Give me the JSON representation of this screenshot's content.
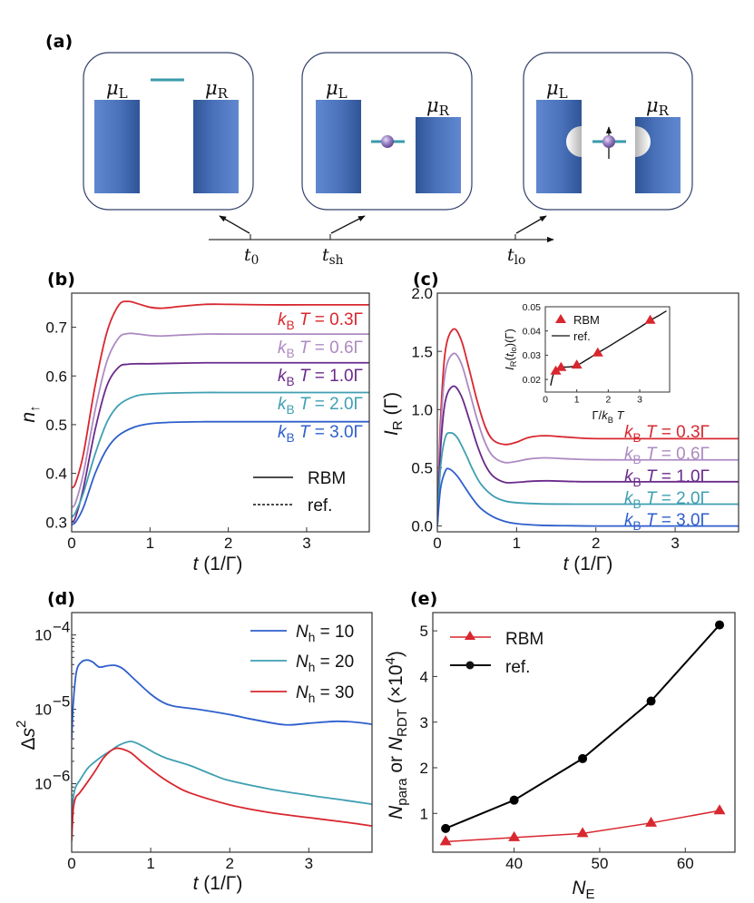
{
  "figure": {
    "panels": [
      "(a)",
      "(b)",
      "(c)",
      "(d)",
      "(e)"
    ],
    "schematic": {
      "boxes": [
        {
          "left_label": "μ",
          "left_sub": "L",
          "right_label": "μ",
          "right_sub": "R",
          "state": "empty level above leads"
        },
        {
          "left_label": "μ",
          "left_sub": "L",
          "right_label": "μ",
          "right_sub": "R",
          "state": "level occupied, bias shifted"
        },
        {
          "left_label": "μ",
          "left_sub": "L",
          "right_label": "μ",
          "right_sub": "R",
          "state": "spin-up occupied with lead holes"
        }
      ],
      "timeline": [
        {
          "label": "t",
          "sub": "0"
        },
        {
          "label": "t",
          "sub": "sh"
        },
        {
          "label": "t",
          "sub": "lo"
        }
      ],
      "colors": {
        "lead_dark": "#2f5596",
        "lead_light": "#6088cf",
        "level": "#3a9aab",
        "electron": "#9a7fc4",
        "box_border": "#33406a",
        "hole": "#d4d4d4"
      }
    }
  },
  "chart_data": [
    {
      "panel": "(b)",
      "type": "line",
      "title": "",
      "xlabel": "t (1/Γ)",
      "ylabel": "n↑",
      "xlim": [
        0,
        3.8
      ],
      "ylim": [
        0.28,
        0.77
      ],
      "xticks": [
        0,
        1,
        2,
        3
      ],
      "yticks": [
        0.3,
        0.4,
        0.5,
        0.6,
        0.7
      ],
      "ytick_labels": [
        "0.3",
        "0.4",
        "0.5",
        "0.6",
        "0.7"
      ],
      "legend": {
        "placement": "lower-right",
        "entries": [
          {
            "label": "RBM",
            "style": "solid"
          },
          {
            "label": "ref.",
            "style": "dashed"
          }
        ]
      },
      "series": [
        {
          "name": "kBT = 0.3Γ",
          "color": "#d8272f",
          "x": [
            0,
            0.05,
            0.15,
            0.3,
            0.45,
            0.6,
            0.72,
            0.85,
            1.0,
            1.15,
            1.4,
            1.7,
            2.0,
            2.5,
            3.0,
            3.8
          ],
          "y": [
            0.37,
            0.38,
            0.44,
            0.58,
            0.69,
            0.745,
            0.753,
            0.748,
            0.741,
            0.739,
            0.743,
            0.747,
            0.747,
            0.746,
            0.746,
            0.746
          ]
        },
        {
          "name": "kBT = 0.6Γ",
          "color": "#ad8ac2",
          "x": [
            0,
            0.05,
            0.15,
            0.3,
            0.45,
            0.6,
            0.72,
            0.85,
            1.0,
            1.15,
            1.4,
            1.7,
            2.0,
            2.5,
            3.0,
            3.8
          ],
          "y": [
            0.33,
            0.34,
            0.4,
            0.53,
            0.63,
            0.678,
            0.687,
            0.686,
            0.683,
            0.682,
            0.684,
            0.686,
            0.686,
            0.686,
            0.686,
            0.686
          ]
        },
        {
          "name": "kBT = 1.0Γ",
          "color": "#6a2a8a",
          "x": [
            0,
            0.05,
            0.15,
            0.3,
            0.45,
            0.6,
            0.72,
            0.85,
            1.0,
            1.3,
            1.7,
            2.0,
            2.5,
            3.0,
            3.8
          ],
          "y": [
            0.3,
            0.31,
            0.37,
            0.49,
            0.58,
            0.618,
            0.624,
            0.625,
            0.625,
            0.626,
            0.627,
            0.627,
            0.627,
            0.627,
            0.627
          ]
        },
        {
          "name": "kBT = 2.0Γ",
          "color": "#3f9fb2",
          "x": [
            0,
            0.05,
            0.15,
            0.3,
            0.45,
            0.6,
            0.8,
            1.0,
            1.3,
            1.7,
            2.0,
            2.5,
            3.0,
            3.8
          ],
          "y": [
            0.31,
            0.32,
            0.36,
            0.44,
            0.505,
            0.54,
            0.558,
            0.563,
            0.565,
            0.566,
            0.566,
            0.566,
            0.566,
            0.566
          ]
        },
        {
          "name": "kBT = 3.0Γ",
          "color": "#2e5fcc",
          "x": [
            0,
            0.05,
            0.15,
            0.3,
            0.45,
            0.6,
            0.8,
            1.0,
            1.3,
            1.7,
            2.0,
            2.5,
            3.0,
            3.8
          ],
          "y": [
            0.295,
            0.3,
            0.33,
            0.4,
            0.45,
            0.478,
            0.495,
            0.502,
            0.505,
            0.506,
            0.506,
            0.506,
            0.506,
            0.506
          ]
        }
      ],
      "annotations": [
        "kBT = 0.3Γ",
        "kBT = 0.6Γ",
        "kBT = 1.0Γ",
        "kBT = 2.0Γ",
        "kBT = 3.0Γ"
      ]
    },
    {
      "panel": "(c)",
      "type": "line",
      "title": "",
      "xlabel": "t (1/Γ)",
      "ylabel": "IR (Γ)",
      "xlim": [
        0,
        3.8
      ],
      "ylim": [
        -0.05,
        2.0
      ],
      "xticks": [
        0,
        1,
        2,
        3
      ],
      "yticks": [
        0.0,
        0.5,
        1.0,
        1.5,
        2.0
      ],
      "ytick_labels": [
        "0.0",
        "0.5",
        "1.0",
        "1.5",
        "2.0"
      ],
      "series": [
        {
          "name": "kBT = 0.3Γ",
          "color": "#d8272f",
          "x": [
            0,
            0.04,
            0.1,
            0.2,
            0.3,
            0.4,
            0.5,
            0.6,
            0.7,
            0.85,
            1.0,
            1.15,
            1.35,
            1.6,
            1.9,
            2.3,
            3.0,
            3.8
          ],
          "y": [
            0.0,
            0.9,
            1.5,
            1.69,
            1.6,
            1.35,
            1.08,
            0.86,
            0.74,
            0.7,
            0.72,
            0.76,
            0.775,
            0.765,
            0.752,
            0.75,
            0.75,
            0.75
          ]
        },
        {
          "name": "kBT = 0.6Γ",
          "color": "#ad8ac2",
          "x": [
            0,
            0.04,
            0.1,
            0.2,
            0.3,
            0.4,
            0.5,
            0.6,
            0.7,
            0.85,
            1.0,
            1.15,
            1.35,
            1.6,
            1.9,
            2.3,
            3.0,
            3.8
          ],
          "y": [
            0.0,
            0.8,
            1.32,
            1.48,
            1.4,
            1.17,
            0.92,
            0.72,
            0.6,
            0.545,
            0.555,
            0.575,
            0.585,
            0.578,
            0.57,
            0.568,
            0.568,
            0.568
          ]
        },
        {
          "name": "kBT = 1.0Γ",
          "color": "#6a2a8a",
          "x": [
            0,
            0.04,
            0.1,
            0.2,
            0.3,
            0.4,
            0.5,
            0.6,
            0.7,
            0.85,
            1.0,
            1.2,
            1.4,
            1.7,
            2.0,
            3.0,
            3.8
          ],
          "y": [
            0.0,
            0.65,
            1.07,
            1.2,
            1.12,
            0.92,
            0.7,
            0.53,
            0.43,
            0.375,
            0.375,
            0.385,
            0.388,
            0.382,
            0.38,
            0.38,
            0.38
          ]
        },
        {
          "name": "kBT = 2.0Γ",
          "color": "#3f9fb2",
          "x": [
            0,
            0.04,
            0.1,
            0.17,
            0.25,
            0.35,
            0.45,
            0.55,
            0.7,
            0.85,
            1.0,
            1.3,
            1.7,
            2.0,
            3.0,
            3.8
          ],
          "y": [
            0.0,
            0.5,
            0.76,
            0.8,
            0.76,
            0.63,
            0.48,
            0.36,
            0.26,
            0.215,
            0.2,
            0.19,
            0.188,
            0.188,
            0.188,
            0.188
          ]
        },
        {
          "name": "kBT = 3.0Γ",
          "color": "#2e5fcc",
          "x": [
            0,
            0.04,
            0.1,
            0.15,
            0.25,
            0.35,
            0.45,
            0.55,
            0.7,
            0.85,
            1.0,
            1.3,
            1.7,
            2.0,
            3.0,
            3.8
          ],
          "y": [
            0.0,
            0.32,
            0.47,
            0.49,
            0.43,
            0.33,
            0.23,
            0.15,
            0.08,
            0.04,
            0.02,
            0.006,
            0.002,
            0.0,
            0.0,
            0.0
          ]
        }
      ],
      "annotations": [
        "kBT = 0.3Γ",
        "kBT = 0.6Γ",
        "kBT = 1.0Γ",
        "kBT = 2.0Γ",
        "kBT = 3.0Γ"
      ],
      "inset": {
        "type": "line+scatter",
        "xlabel": "Γ/kBT",
        "ylabel": "IR(tlo)(Γ)",
        "xlim": [
          0,
          3.95
        ],
        "ylim": [
          0.0148,
          0.05
        ],
        "xticks": [
          0,
          1,
          2,
          3
        ],
        "yticks": [
          0.02,
          0.03,
          0.04,
          0.05
        ],
        "ytick_labels": [
          "0.02",
          "0.03",
          "0.04",
          "0.05"
        ],
        "legend": {
          "placement": "top-left",
          "entries": [
            {
              "label": "RBM",
              "marker": "triangle",
              "color": "#d8272f"
            },
            {
              "label": "ref.",
              "style": "solid",
              "color": "#000000"
            }
          ]
        },
        "rbm_points": {
          "x": [
            0.333,
            0.5,
            1.0,
            1.667,
            3.333
          ],
          "y": [
            0.0235,
            0.025,
            0.026,
            0.031,
            0.0445
          ]
        },
        "ref_line": {
          "x": [
            0.17,
            0.22,
            0.28,
            0.35,
            0.45,
            0.6,
            0.8,
            1.0,
            1.2,
            1.4,
            1.67,
            2.0,
            2.5,
            3.0,
            3.33,
            3.6,
            3.85
          ],
          "y": [
            0.0175,
            0.0205,
            0.023,
            0.0243,
            0.0249,
            0.0251,
            0.0252,
            0.0258,
            0.0272,
            0.0288,
            0.031,
            0.0335,
            0.0375,
            0.0415,
            0.0443,
            0.0463,
            0.0483
          ]
        }
      }
    },
    {
      "panel": "(d)",
      "type": "line",
      "title": "",
      "xlabel": "t (1/Γ)",
      "ylabel": "Δs²",
      "yscale": "log",
      "xlim": [
        0,
        3.8
      ],
      "ylim": [
        1.2e-07,
        0.0002
      ],
      "xticks": [
        0,
        1,
        2,
        3
      ],
      "yticks": [
        1e-06,
        1e-05,
        0.0001
      ],
      "ytick_labels": [
        "10⁻⁶",
        "10⁻⁵",
        "10⁻⁴"
      ],
      "legend": {
        "placement": "top-right",
        "entries": [
          {
            "label": "Nh = 10",
            "color": "#2e5fcc"
          },
          {
            "label": "Nh = 20",
            "color": "#3f9fb2"
          },
          {
            "label": "Nh = 30",
            "color": "#d8272f"
          }
        ]
      },
      "series": [
        {
          "name": "Nh = 10",
          "color": "#2e5fcc",
          "x": [
            0,
            0.02,
            0.06,
            0.12,
            0.2,
            0.27,
            0.35,
            0.45,
            0.55,
            0.65,
            0.8,
            1.0,
            1.15,
            1.3,
            1.6,
            2.0,
            2.3,
            2.7,
            3.0,
            3.35,
            3.6,
            3.8
          ],
          "y": [
            4e-06,
            1.2e-05,
            3.2e-05,
            4.3e-05,
            4.6e-05,
            4.3e-05,
            3.7e-05,
            3.85e-05,
            3.9e-05,
            3.5e-05,
            2.5e-05,
            1.6e-05,
            1.25e-05,
            1.1e-05,
            1e-05,
            8.5e-06,
            7.3e-06,
            6.2e-06,
            6.5e-06,
            6.9e-06,
            6.7e-06,
            6.3e-06
          ]
        },
        {
          "name": "Nh = 20",
          "color": "#3f9fb2",
          "x": [
            0,
            0.02,
            0.05,
            0.1,
            0.2,
            0.3,
            0.4,
            0.5,
            0.6,
            0.75,
            0.9,
            1.05,
            1.2,
            1.5,
            1.8,
            2.0,
            2.5,
            3.0,
            3.5,
            3.8
          ],
          "y": [
            4e-07,
            6.5e-07,
            9e-07,
            1.1e-06,
            1.6e-06,
            2e-06,
            2.4e-06,
            2.8e-06,
            3.3e-06,
            3.7e-06,
            3.2e-06,
            2.6e-06,
            2.2e-06,
            1.75e-06,
            1.3e-06,
            1.1e-06,
            8.5e-07,
            7e-07,
            5.9e-07,
            5.3e-07
          ]
        },
        {
          "name": "Nh = 30",
          "color": "#d8272f",
          "x": [
            0,
            0.02,
            0.05,
            0.1,
            0.2,
            0.3,
            0.4,
            0.5,
            0.57,
            0.65,
            0.75,
            0.9,
            1.1,
            1.3,
            1.5,
            2.0,
            2.5,
            3.0,
            3.5,
            3.8
          ],
          "y": [
            1.7e-07,
            4.5e-07,
            6.5e-07,
            7.5e-07,
            1.05e-06,
            1.5e-06,
            2.2e-06,
            2.8e-06,
            3e-06,
            2.9e-06,
            2.6e-06,
            1.9e-06,
            1.3e-06,
            9.5e-07,
            7.5e-07,
            5.2e-07,
            4.1e-07,
            3.5e-07,
            3e-07,
            2.7e-07
          ]
        }
      ]
    },
    {
      "panel": "(e)",
      "type": "line",
      "title": "",
      "xlabel": "NE",
      "ylabel": "Npara or NRDT (×10⁴)",
      "xlim": [
        30.5,
        65.8
      ],
      "ylim": [
        0.15,
        5.4
      ],
      "xticks": [
        40,
        50,
        60
      ],
      "yticks": [
        1,
        2,
        3,
        4,
        5
      ],
      "legend": {
        "placement": "top-left",
        "entries": [
          {
            "label": "RBM",
            "marker": "triangle",
            "color": "#d8272f"
          },
          {
            "label": "ref.",
            "marker": "circle",
            "color": "#000000"
          }
        ]
      },
      "categories": [
        32,
        40,
        48,
        56,
        64
      ],
      "series": [
        {
          "name": "RBM",
          "color": "#d8272f",
          "marker": "triangle",
          "values": [
            0.38,
            0.47,
            0.56,
            0.79,
            1.06
          ]
        },
        {
          "name": "ref.",
          "color": "#000000",
          "marker": "circle",
          "values": [
            0.67,
            1.29,
            2.2,
            3.46,
            5.13
          ]
        }
      ]
    }
  ]
}
